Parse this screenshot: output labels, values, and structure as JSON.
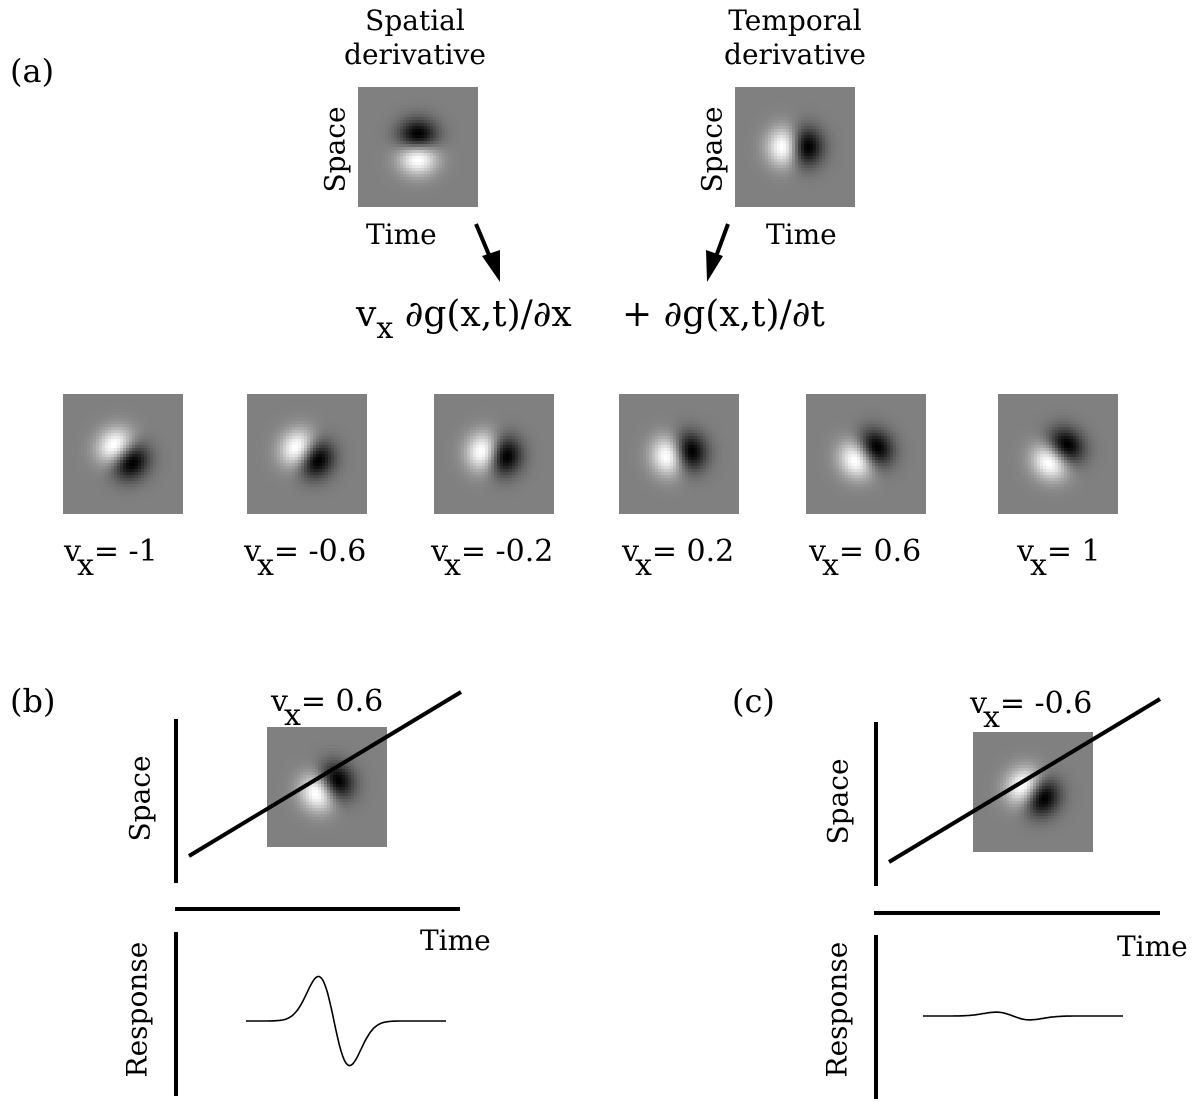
{
  "panel_a": {
    "label": "(a)",
    "spatial": {
      "title_line1": "Spatial",
      "title_line2": "derivative",
      "ylabel": "Space",
      "xlabel": "Time"
    },
    "temporal": {
      "title_line1": "Temporal",
      "title_line2": "derivative",
      "ylabel": "Space",
      "xlabel": "Time"
    },
    "equation": {
      "v": "v",
      "sub": "x",
      "term1": " ∂g(x,t)/∂x",
      "term2": "+ ∂g(x,t)/∂t"
    },
    "filters": [
      {
        "v": "v",
        "sub": "x",
        "rest": "= -1",
        "value": -1
      },
      {
        "v": "v",
        "sub": "x",
        "rest": "= -0.6",
        "value": -0.6
      },
      {
        "v": "v",
        "sub": "x",
        "rest": "= -0.2",
        "value": -0.2
      },
      {
        "v": "v",
        "sub": "x",
        "rest": "= 0.2",
        "value": 0.2
      },
      {
        "v": "v",
        "sub": "x",
        "rest": "= 0.6",
        "value": 0.6
      },
      {
        "v": "v",
        "sub": "x",
        "rest": "= 1",
        "value": 1
      }
    ]
  },
  "panel_b": {
    "label": "(b)",
    "v": "v",
    "sub": "x",
    "rest": "= 0.6",
    "value": 0.6,
    "ylabel": "Space",
    "xlabel": "Time",
    "response_label": "Response"
  },
  "panel_c": {
    "label": "(c)",
    "v": "v",
    "sub": "x",
    "rest": "= -0.6",
    "value": -0.6,
    "ylabel": "Space",
    "xlabel": "Time",
    "response_label": "Response"
  },
  "colors": {
    "background": "#808080",
    "line": "#000000"
  }
}
